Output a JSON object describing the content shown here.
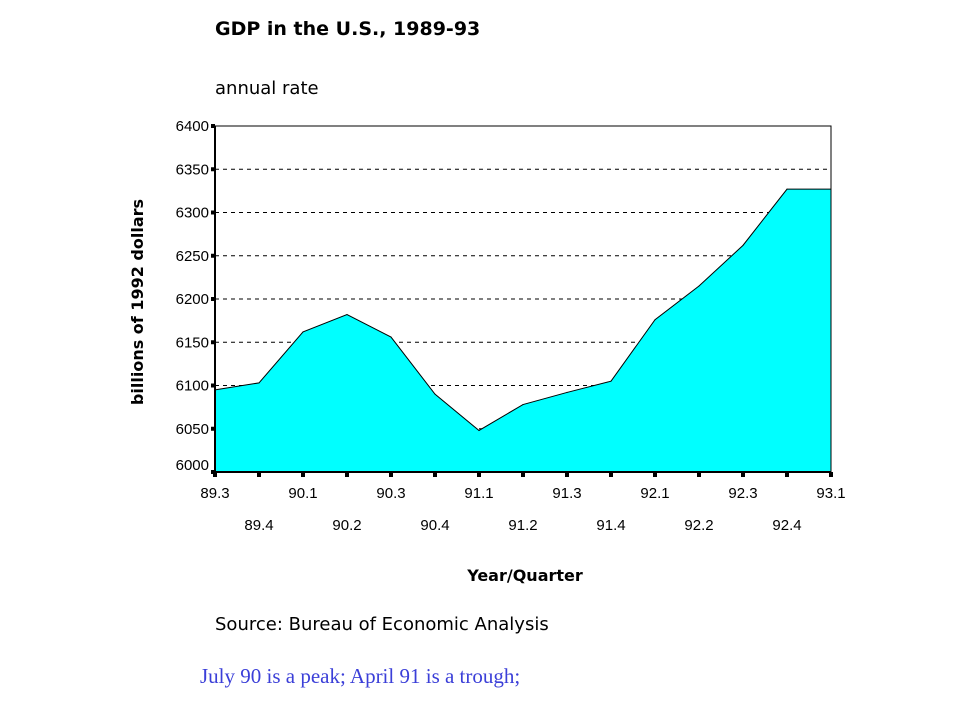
{
  "header": {
    "title": "GDP in the U.S., 1989-93",
    "subtitle": "annual rate"
  },
  "footer": {
    "source": "Source: Bureau of Economic Analysis",
    "note": "July 90 is a peak; April 91 is a trough;"
  },
  "colors": {
    "area_fill": "#00ffff",
    "note_text": "#3b3fd8"
  },
  "chart_data": {
    "type": "area",
    "title": "GDP in the U.S., 1989-93",
    "subtitle": "annual rate",
    "xlabel": "Year/Quarter",
    "ylabel": "billions of 1992 dollars",
    "ylim": [
      6000,
      6400
    ],
    "yticks": [
      6000,
      6050,
      6100,
      6150,
      6200,
      6250,
      6300,
      6350,
      6400
    ],
    "categories": [
      "89.3",
      "89.4",
      "90.1",
      "90.2",
      "90.3",
      "90.4",
      "91.1",
      "91.2",
      "91.3",
      "91.4",
      "92.1",
      "92.2",
      "92.3",
      "92.4",
      "93.1"
    ],
    "values": [
      6095,
      6103,
      6162,
      6182,
      6156,
      6090,
      6048,
      6078,
      6092,
      6105,
      6176,
      6215,
      6262,
      6327,
      6327
    ],
    "grid": "horizontal dashed",
    "legend": "none"
  }
}
